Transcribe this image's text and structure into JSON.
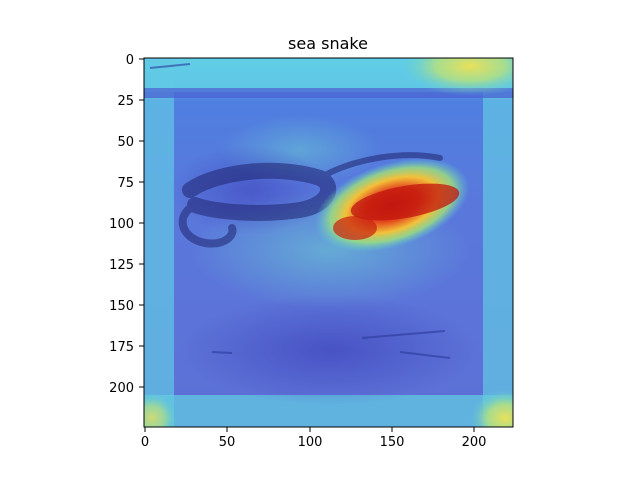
{
  "figure": {
    "title": "sea snake"
  },
  "axes": {
    "x_ticks": [
      "0",
      "50",
      "100",
      "150",
      "200"
    ],
    "y_ticks": [
      "0",
      "25",
      "50",
      "75",
      "100",
      "125",
      "150",
      "175",
      "200"
    ],
    "x_range": [
      0,
      224
    ],
    "y_range": [
      0,
      224
    ]
  },
  "image": {
    "description_tag": "sea-snake-attention-heatmap",
    "colormap": "jet"
  }
}
